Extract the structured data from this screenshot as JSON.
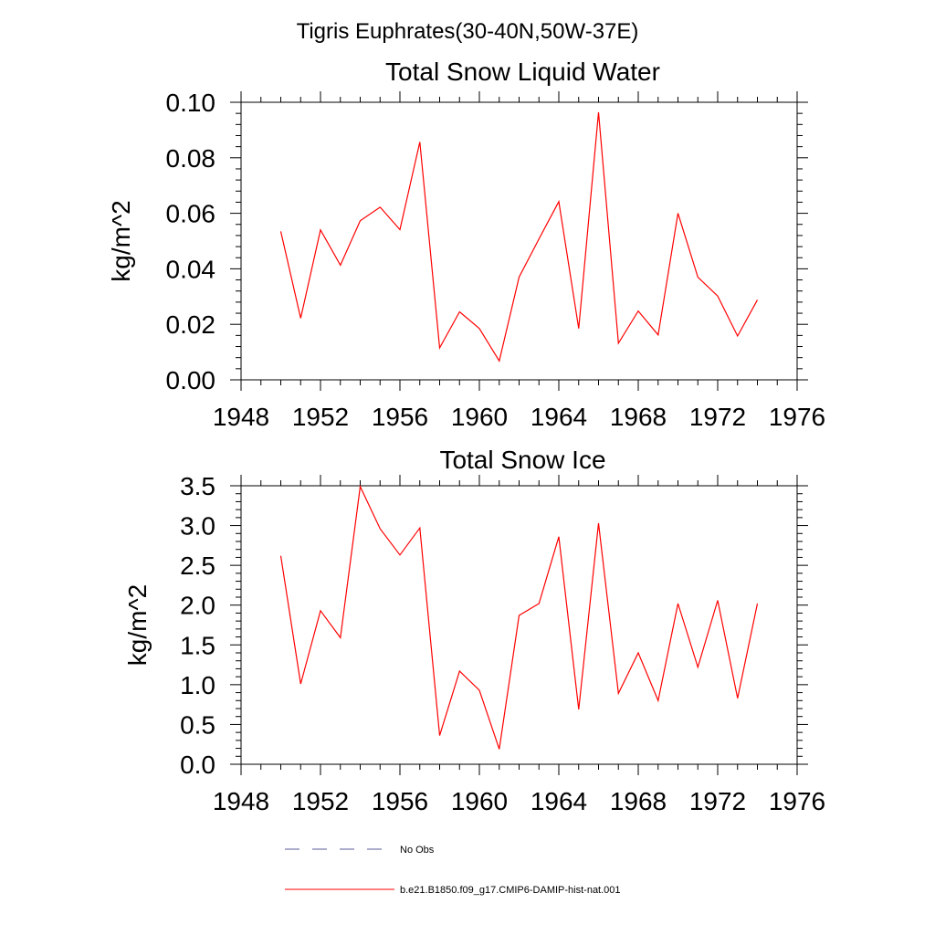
{
  "page_title": "Tigris Euphrates(30-40N,50W-37E)",
  "legend": {
    "entries": [
      {
        "label": "No Obs",
        "color": "#5a5a9a",
        "dash": true
      },
      {
        "label": "b.e21.B1850.f09_g17.CMIP6-DAMIP-hist-nat.001",
        "color": "#ff0000",
        "dash": false
      }
    ]
  },
  "chart_data": [
    {
      "type": "line",
      "title": "Total Snow Liquid Water",
      "ylabel": "kg/m^2",
      "xlabel": "",
      "xlim": [
        1948,
        1976
      ],
      "ylim": [
        0,
        0.1
      ],
      "xticks": [
        "1948",
        "1952",
        "1956",
        "1960",
        "1964",
        "1968",
        "1972",
        "1976"
      ],
      "yticks": [
        "0.00",
        "0.02",
        "0.04",
        "0.06",
        "0.08",
        "0.10"
      ],
      "series": [
        {
          "color": "#ff0000",
          "x": [
            1950,
            1951,
            1952,
            1953,
            1954,
            1955,
            1956,
            1957,
            1958,
            1959,
            1960,
            1961,
            1962,
            1963,
            1964,
            1965,
            1966,
            1967,
            1968,
            1969,
            1970,
            1971,
            1972,
            1973,
            1974
          ],
          "values": [
            0.0535,
            0.0222,
            0.054,
            0.0413,
            0.0573,
            0.0622,
            0.0541,
            0.0857,
            0.0115,
            0.0245,
            0.0185,
            0.0068,
            0.037,
            0.0508,
            0.0642,
            0.0185,
            0.0964,
            0.0132,
            0.0248,
            0.0162,
            0.06,
            0.037,
            0.0302,
            0.0158,
            0.0288
          ]
        }
      ]
    },
    {
      "type": "line",
      "title": "Total Snow Ice",
      "ylabel": "kg/m^2",
      "xlabel": "",
      "xlim": [
        1948,
        1976
      ],
      "ylim": [
        0,
        3.5
      ],
      "xticks": [
        "1948",
        "1952",
        "1956",
        "1960",
        "1964",
        "1968",
        "1972",
        "1976"
      ],
      "yticks": [
        "0.0",
        "0.5",
        "1.0",
        "1.5",
        "2.0",
        "2.5",
        "3.0",
        "3.5"
      ],
      "series": [
        {
          "color": "#ff0000",
          "x": [
            1950,
            1951,
            1952,
            1953,
            1954,
            1955,
            1956,
            1957,
            1958,
            1959,
            1960,
            1961,
            1962,
            1963,
            1964,
            1965,
            1966,
            1967,
            1968,
            1969,
            1970,
            1971,
            1972,
            1973,
            1974
          ],
          "values": [
            2.62,
            1.01,
            1.93,
            1.59,
            3.49,
            2.96,
            2.63,
            2.97,
            0.36,
            1.17,
            0.93,
            0.19,
            1.87,
            2.02,
            2.86,
            0.69,
            3.03,
            0.89,
            1.4,
            0.8,
            2.02,
            1.22,
            2.06,
            0.83,
            2.02
          ]
        }
      ]
    }
  ]
}
